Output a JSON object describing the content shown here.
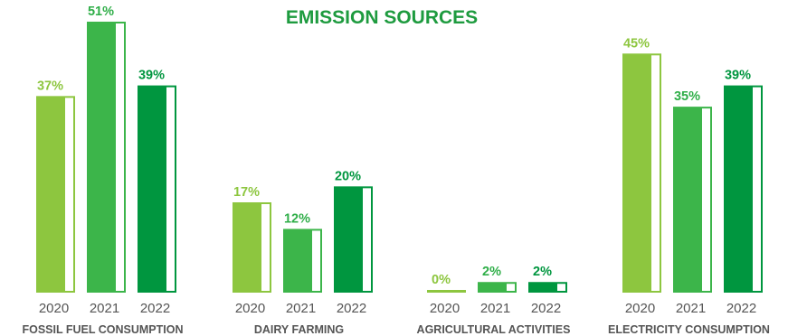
{
  "chart_data": {
    "type": "bar",
    "title": "EMISSION SOURCES",
    "years": [
      "2020",
      "2021",
      "2022"
    ],
    "unit": "%",
    "groups": [
      {
        "name": "FOSSIL FUEL CONSUMPTION",
        "values": [
          37,
          51,
          39
        ],
        "labels": [
          "37%",
          "51%",
          "39%"
        ]
      },
      {
        "name": "DAIRY FARMING",
        "values": [
          17,
          12,
          20
        ],
        "labels": [
          "17%",
          "12%",
          "20%"
        ]
      },
      {
        "name": "AGRICULTURAL ACTIVITIES",
        "values": [
          0,
          2,
          2
        ],
        "labels": [
          "0%",
          "2%",
          "2%"
        ]
      },
      {
        "name": "ELECTRICITY CONSUMPTION",
        "values": [
          45,
          35,
          39
        ],
        "labels": [
          "45%",
          "35%",
          "39%"
        ]
      }
    ],
    "colors": [
      "#8dc63f",
      "#3cb54a",
      "#00963f"
    ],
    "label_colors": [
      "#8dc63f",
      "#2fae48",
      "#00963f"
    ],
    "ylim": [
      0,
      51
    ],
    "grid": false,
    "legend": "none"
  }
}
